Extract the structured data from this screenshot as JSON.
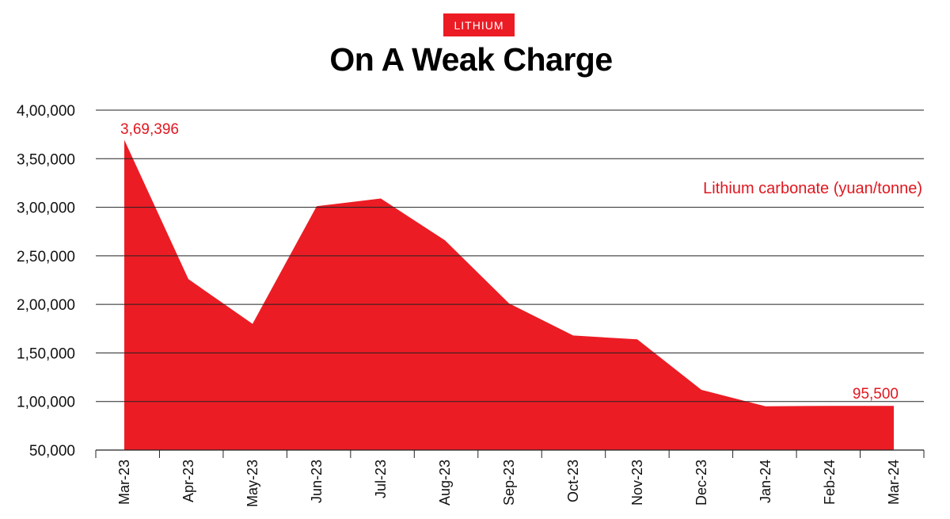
{
  "header": {
    "tag": "LITHIUM",
    "title": "On A Weak Charge"
  },
  "colors": {
    "fill": "#ec1c24",
    "annotation": "#e0171f",
    "grid": "#222222",
    "text": "#111111"
  },
  "chart_data": {
    "type": "area",
    "title": "On A Weak Charge",
    "categories": [
      "Mar-23",
      "Apr-23",
      "May-23",
      "Jun-23",
      "Jul-23",
      "Aug-23",
      "Sep-23",
      "Oct-23",
      "Nov-23",
      "Dec-23",
      "Jan-24",
      "Feb-24",
      "Mar-24"
    ],
    "series": [
      {
        "name": "Lithium carbonate (yuan/tonne)",
        "values": [
          369396,
          226000,
          180000,
          301000,
          309000,
          266000,
          201000,
          168000,
          164000,
          112000,
          95000,
          95500,
          95500
        ]
      }
    ],
    "ylim": [
      50000,
      400000
    ],
    "yticks": [
      50000,
      100000,
      150000,
      200000,
      250000,
      300000,
      350000,
      400000
    ],
    "ytick_labels": [
      "50,000",
      "1,00,000",
      "1,50,000",
      "2,00,000",
      "2,50,000",
      "3,00,000",
      "3,50,000",
      "4,00,000"
    ],
    "grid": true,
    "annotations": [
      {
        "index": 0,
        "text": "3,69,396"
      },
      {
        "index": 12,
        "text": "95,500"
      }
    ]
  }
}
